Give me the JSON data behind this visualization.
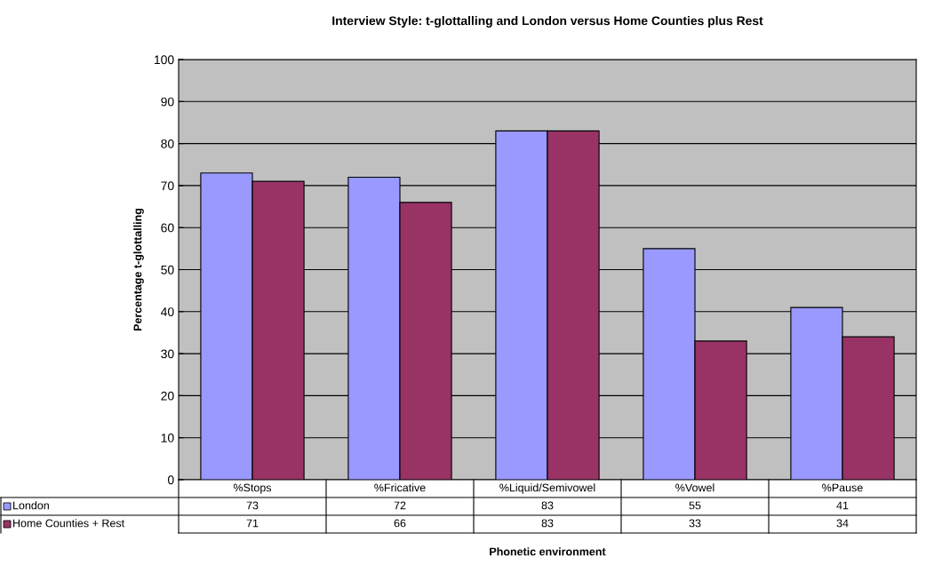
{
  "chart_data": {
    "type": "bar",
    "title": "Interview Style: t-glottalling and London versus Home Counties plus Rest",
    "xlabel": "Phonetic environment",
    "ylabel": "Percentage t-glottalling",
    "categories": [
      "%Stops",
      "%Fricative",
      "%Liquid/Semivowel",
      "%Vowel",
      "%Pause"
    ],
    "series": [
      {
        "name": "London",
        "color": "#9999ff",
        "values": [
          73,
          72,
          83,
          55,
          41
        ]
      },
      {
        "name": "Home Counties + Rest",
        "color": "#993366",
        "values": [
          71,
          66,
          83,
          33,
          34
        ]
      }
    ],
    "ylim": [
      0,
      100
    ],
    "yticks": [
      0,
      10,
      20,
      30,
      40,
      50,
      60,
      70,
      80,
      90,
      100
    ],
    "grid": "y",
    "legend": "bottom",
    "data_labels": true
  }
}
